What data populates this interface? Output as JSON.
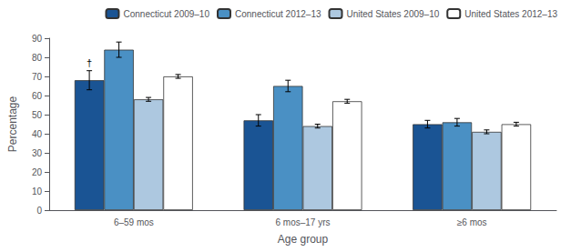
{
  "chart_data": {
    "type": "bar",
    "categories": [
      "6–59 mos",
      "6 mos–17 yrs",
      "≥6 mos"
    ],
    "series": [
      {
        "name": "Connecticut 2009–10",
        "color": "#1a5494",
        "values": [
          68,
          47,
          45
        ],
        "errors": [
          5,
          3,
          2
        ]
      },
      {
        "name": "Connecticut 2012–13",
        "color": "#4a90c4",
        "values": [
          84,
          65,
          46
        ],
        "errors": [
          4,
          3,
          2
        ]
      },
      {
        "name": "United States 2009–10",
        "color": "#adc8e0",
        "values": [
          58,
          44,
          41
        ],
        "errors": [
          1,
          1,
          1
        ]
      },
      {
        "name": "United States 2012–13",
        "color": "#ffffff",
        "values": [
          70,
          57,
          45
        ],
        "errors": [
          1,
          1,
          1
        ]
      }
    ],
    "xlabel": "Age group",
    "ylabel": "Percentage",
    "ylim": [
      0,
      90
    ],
    "yticks": [
      0,
      10,
      20,
      30,
      40,
      50,
      60,
      70,
      80,
      90
    ],
    "grid": false,
    "legend": "upper right",
    "annotations": [
      "†"
    ]
  }
}
